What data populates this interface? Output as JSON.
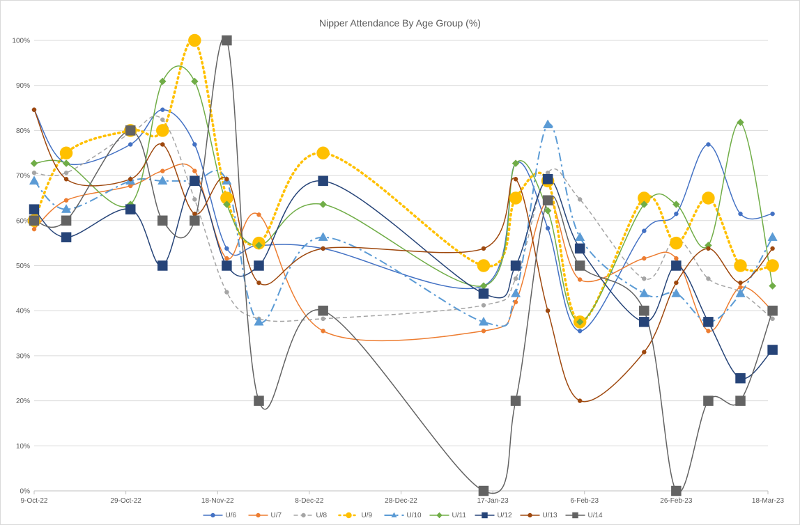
{
  "chart_data": {
    "type": "line",
    "title": "Nipper Attendance By Age Group (%)",
    "xlabel": "",
    "ylabel": "",
    "x_range": [
      "2022-10-09",
      "2023-03-18"
    ],
    "x_ticks": [
      {
        "date": "2022-10-09",
        "label": "9-Oct-22"
      },
      {
        "date": "2022-10-29",
        "label": "29-Oct-22"
      },
      {
        "date": "2022-11-18",
        "label": "18-Nov-22"
      },
      {
        "date": "2022-12-08",
        "label": "8-Dec-22"
      },
      {
        "date": "2022-12-28",
        "label": "28-Dec-22"
      },
      {
        "date": "2023-01-17",
        "label": "17-Jan-23"
      },
      {
        "date": "2023-02-06",
        "label": "6-Feb-23"
      },
      {
        "date": "2023-02-26",
        "label": "26-Feb-23"
      },
      {
        "date": "2023-03-18",
        "label": "18-Mar-23"
      }
    ],
    "y_ticks": [
      "0%",
      "10%",
      "20%",
      "30%",
      "40%",
      "50%",
      "60%",
      "70%",
      "80%",
      "90%",
      "100%"
    ],
    "ylim": [
      0,
      100
    ],
    "grid": "horizontal",
    "legend_position": "bottom",
    "x": [
      "2022-10-09",
      "2022-10-16",
      "2022-10-30",
      "2022-11-06",
      "2022-11-13",
      "2022-11-20",
      "2022-11-27",
      "2022-12-11",
      "2023-01-15",
      "2023-01-22",
      "2023-01-29",
      "2023-02-05",
      "2023-02-19",
      "2023-02-26",
      "2023-03-05",
      "2023-03-12",
      "2023-03-19"
    ],
    "series": [
      {
        "name": "U/6",
        "color": "#4472C4",
        "dash": "none",
        "marker": "circle",
        "marker_size": 3,
        "values": [
          84.6,
          72.7,
          76.9,
          84.6,
          76.9,
          53.8,
          54.5,
          53.8,
          45.5,
          72.7,
          58.3,
          35.5,
          57.7,
          61.5,
          76.9,
          61.5,
          61.5
        ]
      },
      {
        "name": "U/7",
        "color": "#ED7D31",
        "dash": "none",
        "marker": "circle",
        "marker_size": 3,
        "values": [
          58.1,
          64.5,
          67.7,
          71.0,
          71.0,
          51.6,
          61.3,
          35.5,
          35.5,
          41.9,
          64.5,
          46.9,
          51.6,
          51.6,
          35.5,
          45.2,
          40.0
        ]
      },
      {
        "name": "U/8",
        "color": "#A5A5A5",
        "dash": "6,4",
        "marker": "circle",
        "marker_size": 3,
        "values": [
          70.6,
          70.6,
          79.4,
          82.4,
          64.7,
          44.1,
          38.2,
          38.2,
          41.2,
          47.1,
          70.6,
          64.7,
          47.1,
          55.9,
          47.1,
          44.1,
          38.2
        ]
      },
      {
        "name": "U/9",
        "color": "#FFC000",
        "dash": "2,5",
        "marker": "circle",
        "marker_size": 9,
        "width": 3.5,
        "values": [
          60,
          75,
          80,
          80,
          100,
          65,
          55,
          75,
          50,
          65,
          68.8,
          37.5,
          65,
          55,
          65,
          50,
          50
        ]
      },
      {
        "name": "U/10",
        "color": "#5B9BD5",
        "dash": "12,5,3,5",
        "marker": "triangle",
        "marker_size": 7,
        "width": 2,
        "values": [
          68.8,
          62.5,
          68.8,
          68.8,
          68.8,
          68.8,
          37.5,
          56.3,
          37.5,
          43.8,
          81.3,
          56.3,
          43.8,
          43.8,
          37.5,
          43.8,
          56.3
        ]
      },
      {
        "name": "U/11",
        "color": "#70AD47",
        "dash": "none",
        "marker": "diamond",
        "marker_size": 5,
        "values": [
          72.7,
          72.7,
          63.6,
          90.9,
          90.9,
          63.6,
          54.5,
          63.6,
          45.5,
          72.7,
          62.2,
          37.5,
          63.6,
          63.6,
          54.5,
          81.8,
          45.5
        ]
      },
      {
        "name": "U/12",
        "color": "#264478",
        "dash": "none",
        "marker": "square",
        "marker_size": 7,
        "values": [
          62.5,
          56.3,
          62.5,
          50.0,
          68.8,
          50.0,
          50.0,
          68.8,
          43.8,
          50.0,
          69.2,
          53.8,
          37.5,
          50.0,
          37.5,
          25.0,
          31.3
        ]
      },
      {
        "name": "U/13",
        "color": "#9E480E",
        "dash": "none",
        "marker": "circle",
        "marker_size": 3,
        "values": [
          84.6,
          69.2,
          69.2,
          76.9,
          61.5,
          69.2,
          46.2,
          53.8,
          53.8,
          69.2,
          40.0,
          20.0,
          30.8,
          46.2,
          53.8,
          46.2,
          53.8
        ]
      },
      {
        "name": "U/14",
        "color": "#636363",
        "dash": "none",
        "marker": "square",
        "marker_size": 7,
        "values": [
          60,
          60,
          80,
          60,
          60,
          100,
          20,
          40,
          0,
          20,
          64.5,
          50,
          40,
          0,
          20,
          20,
          40
        ]
      }
    ]
  }
}
